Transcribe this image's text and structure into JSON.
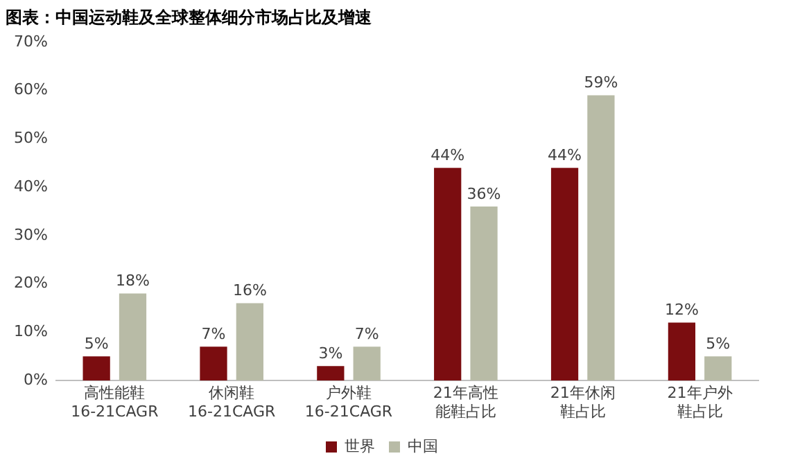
{
  "chart_data": {
    "type": "bar",
    "title": "图表：中国运动鞋及全球整体细分市场占比及增速",
    "categories": [
      "高性能鞋\n16-21CAGR",
      "休闲鞋\n16-21CAGR",
      "户外鞋\n16-21CAGR",
      "21年高性能鞋占比",
      "21年休闲鞋占比",
      "21年户外鞋占比"
    ],
    "series": [
      {
        "name": "世界",
        "color": "#7b0d10",
        "values": [
          5,
          7,
          3,
          44,
          44,
          12
        ],
        "value_labels": [
          "5%",
          "7%",
          "3%",
          "44%",
          "44%",
          "12%"
        ]
      },
      {
        "name": "中国",
        "color": "#b8bba6",
        "values": [
          18,
          16,
          7,
          36,
          59,
          5
        ],
        "value_labels": [
          "18%",
          "16%",
          "7%",
          "36%",
          "59%",
          "5%"
        ]
      }
    ],
    "ylim": [
      0,
      70
    ],
    "yticks": [
      {
        "value": 0,
        "label": "0%"
      },
      {
        "value": 10,
        "label": "10%"
      },
      {
        "value": 20,
        "label": "20%"
      },
      {
        "value": 30,
        "label": "30%"
      },
      {
        "value": 40,
        "label": "40%"
      },
      {
        "value": 50,
        "label": "50%"
      },
      {
        "value": 60,
        "label": "60%"
      },
      {
        "value": 70,
        "label": "70%"
      }
    ],
    "grid": false,
    "legend": "bottom"
  }
}
